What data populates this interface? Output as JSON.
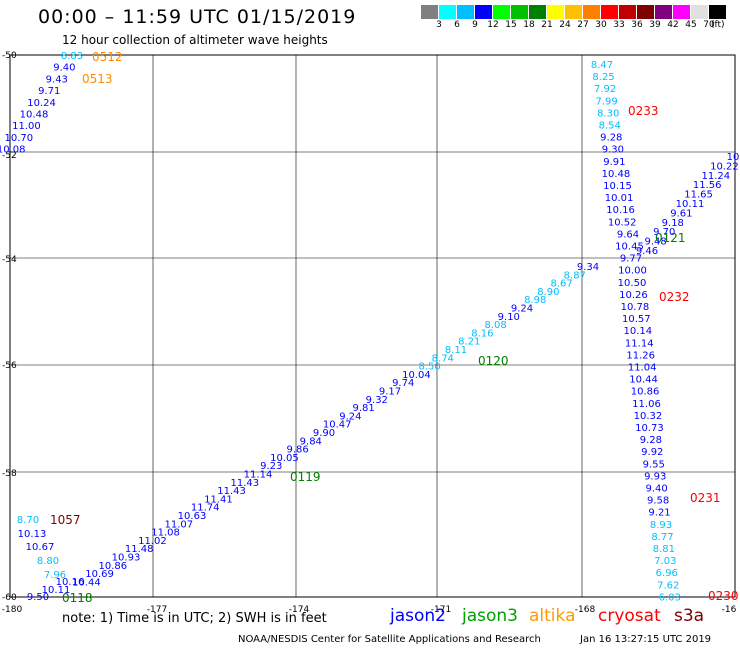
{
  "header": {
    "title": "00:00 – 11:59 UTC 01/15/2019",
    "subtitle": "12 hour collection of altimeter wave heights"
  },
  "legend": {
    "colors": [
      "#808080",
      "#00ffff",
      "#00bfff",
      "#0000ff",
      "#00ff00",
      "#00c000",
      "#008000",
      "#ffff00",
      "#ffc000",
      "#ff8000",
      "#ff0000",
      "#c00000",
      "#800000",
      "#800080",
      "#ff00ff",
      "#e0e0e0",
      "#000000"
    ],
    "labels": [
      "3",
      "6",
      "9",
      "12",
      "15",
      "18",
      "21",
      "24",
      "27",
      "30",
      "33",
      "36",
      "39",
      "42",
      "45",
      "70"
    ],
    "unit": "(ft)"
  },
  "axes": {
    "lon_ticks": [
      "-180",
      "-177",
      "-174",
      "-171",
      "-168",
      "-16"
    ],
    "lat_ticks": [
      "-50",
      "-52",
      "-54",
      "-56",
      "-58",
      "-60"
    ]
  },
  "time_labels": [
    {
      "text": "0512",
      "color": "#ff8c00"
    },
    {
      "text": "0513",
      "color": "#ff8c00"
    },
    {
      "text": "0233",
      "color": "#ff0000"
    },
    {
      "text": "0121",
      "color": "#008000"
    },
    {
      "text": "0232",
      "color": "#ff0000"
    },
    {
      "text": "0120",
      "color": "#008000"
    },
    {
      "text": "0119",
      "color": "#008000"
    },
    {
      "text": "1057",
      "color": "#800000"
    },
    {
      "text": "0231",
      "color": "#ff0000"
    },
    {
      "text": "0118",
      "color": "#008000"
    },
    {
      "text": "0230",
      "color": "#ff0000"
    }
  ],
  "tracks": {
    "altika_top": [
      {
        "v": "8.83",
        "c": "#00bfff"
      },
      {
        "v": "9.40",
        "c": "#0000ff"
      },
      {
        "v": "9.43",
        "c": "#0000ff"
      },
      {
        "v": "9.71",
        "c": "#0000ff"
      },
      {
        "v": "10.24",
        "c": "#0000ff"
      },
      {
        "v": "10.48",
        "c": "#0000ff"
      },
      {
        "v": "11.00",
        "c": "#0000ff"
      },
      {
        "v": "10.70",
        "c": "#0000ff"
      },
      {
        "v": "10.08",
        "c": "#0000ff"
      }
    ],
    "cryosat_column": [
      {
        "v": "8.47",
        "c": "#00bfff"
      },
      {
        "v": "8.25",
        "c": "#00bfff"
      },
      {
        "v": "7.92",
        "c": "#00bfff"
      },
      {
        "v": "7.99",
        "c": "#00bfff"
      },
      {
        "v": "8.30",
        "c": "#00bfff"
      },
      {
        "v": "8.54",
        "c": "#00bfff"
      },
      {
        "v": "9.28",
        "c": "#0000ff"
      },
      {
        "v": "9.30",
        "c": "#0000ff"
      },
      {
        "v": "9.91",
        "c": "#0000ff"
      },
      {
        "v": "10.48",
        "c": "#0000ff"
      },
      {
        "v": "10.15",
        "c": "#0000ff"
      },
      {
        "v": "10.01",
        "c": "#0000ff"
      },
      {
        "v": "10.16",
        "c": "#0000ff"
      },
      {
        "v": "10.52",
        "c": "#0000ff"
      },
      {
        "v": "9.64",
        "c": "#0000ff"
      },
      {
        "v": "10.45",
        "c": "#0000ff"
      },
      {
        "v": "9.77",
        "c": "#0000ff"
      },
      {
        "v": "10.00",
        "c": "#0000ff"
      },
      {
        "v": "10.50",
        "c": "#0000ff"
      },
      {
        "v": "10.26",
        "c": "#0000ff"
      },
      {
        "v": "10.78",
        "c": "#0000ff"
      },
      {
        "v": "10.57",
        "c": "#0000ff"
      },
      {
        "v": "10.14",
        "c": "#0000ff"
      },
      {
        "v": "11.14",
        "c": "#0000ff"
      },
      {
        "v": "11.26",
        "c": "#0000ff"
      },
      {
        "v": "11.04",
        "c": "#0000ff"
      },
      {
        "v": "10.44",
        "c": "#0000ff"
      },
      {
        "v": "10.86",
        "c": "#0000ff"
      },
      {
        "v": "11.06",
        "c": "#0000ff"
      },
      {
        "v": "10.32",
        "c": "#0000ff"
      },
      {
        "v": "10.73",
        "c": "#0000ff"
      },
      {
        "v": "9.28",
        "c": "#0000ff"
      },
      {
        "v": "9.92",
        "c": "#0000ff"
      },
      {
        "v": "9.55",
        "c": "#0000ff"
      },
      {
        "v": "9.93",
        "c": "#0000ff"
      },
      {
        "v": "9.40",
        "c": "#0000ff"
      },
      {
        "v": "9.58",
        "c": "#0000ff"
      },
      {
        "v": "9.21",
        "c": "#0000ff"
      },
      {
        "v": "8.93",
        "c": "#00bfff"
      },
      {
        "v": "8.77",
        "c": "#00bfff"
      },
      {
        "v": "8.81",
        "c": "#00bfff"
      },
      {
        "v": "7.03",
        "c": "#00bfff"
      },
      {
        "v": "6.96",
        "c": "#00bfff"
      },
      {
        "v": "7.62",
        "c": "#00bfff"
      },
      {
        "v": "6.03",
        "c": "#00bfff"
      }
    ],
    "upper_right_diag": [
      {
        "v": "10",
        "c": "#0000ff"
      },
      {
        "v": "10.22",
        "c": "#0000ff"
      },
      {
        "v": "11.24",
        "c": "#0000ff"
      },
      {
        "v": "11.56",
        "c": "#0000ff"
      },
      {
        "v": "11.65",
        "c": "#0000ff"
      },
      {
        "v": "10.11",
        "c": "#0000ff"
      },
      {
        "v": "9.61",
        "c": "#0000ff"
      },
      {
        "v": "9.18",
        "c": "#0000ff"
      },
      {
        "v": "9.70",
        "c": "#0000ff"
      },
      {
        "v": "9.48",
        "c": "#0000ff"
      },
      {
        "v": "9.46",
        "c": "#0000ff"
      }
    ],
    "jason_diag": [
      {
        "v": "9.34",
        "c": "#0000ff"
      },
      {
        "v": "8.87",
        "c": "#00bfff"
      },
      {
        "v": "8.67",
        "c": "#00bfff"
      },
      {
        "v": "8.90",
        "c": "#00bfff"
      },
      {
        "v": "8.98",
        "c": "#00bfff"
      },
      {
        "v": "9.24",
        "c": "#0000ff"
      },
      {
        "v": "9.10",
        "c": "#0000ff"
      },
      {
        "v": "8.08",
        "c": "#00bfff"
      },
      {
        "v": "8.16",
        "c": "#00bfff"
      },
      {
        "v": "8.21",
        "c": "#00bfff"
      },
      {
        "v": "8.11",
        "c": "#00bfff"
      },
      {
        "v": "8.74",
        "c": "#00bfff"
      },
      {
        "v": "8.50",
        "c": "#00bfff"
      },
      {
        "v": "10.04",
        "c": "#0000ff"
      },
      {
        "v": "9.74",
        "c": "#0000ff"
      },
      {
        "v": "9.17",
        "c": "#0000ff"
      },
      {
        "v": "9.32",
        "c": "#0000ff"
      },
      {
        "v": "9.81",
        "c": "#0000ff"
      },
      {
        "v": "9.24",
        "c": "#0000ff"
      },
      {
        "v": "10.47",
        "c": "#0000ff"
      },
      {
        "v": "9.90",
        "c": "#0000ff"
      },
      {
        "v": "9.84",
        "c": "#0000ff"
      },
      {
        "v": "9.86",
        "c": "#0000ff"
      },
      {
        "v": "10.05",
        "c": "#0000ff"
      },
      {
        "v": "9.23",
        "c": "#0000ff"
      },
      {
        "v": "11.14",
        "c": "#0000ff"
      },
      {
        "v": "11.43",
        "c": "#0000ff"
      },
      {
        "v": "11.43",
        "c": "#0000ff"
      },
      {
        "v": "11.41",
        "c": "#0000ff"
      },
      {
        "v": "11.74",
        "c": "#0000ff"
      },
      {
        "v": "10.63",
        "c": "#0000ff"
      },
      {
        "v": "11.07",
        "c": "#0000ff"
      },
      {
        "v": "11.08",
        "c": "#0000ff"
      },
      {
        "v": "11.02",
        "c": "#0000ff"
      },
      {
        "v": "11.48",
        "c": "#0000ff"
      },
      {
        "v": "10.93",
        "c": "#0000ff"
      },
      {
        "v": "10.86",
        "c": "#0000ff"
      },
      {
        "v": "10.69",
        "c": "#0000ff"
      },
      {
        "v": "10.44",
        "c": "#0000ff"
      }
    ],
    "lower_left": [
      {
        "v": "8.70",
        "c": "#00bfff"
      },
      {
        "v": "10.13",
        "c": "#0000ff"
      },
      {
        "v": "10.67",
        "c": "#0000ff"
      },
      {
        "v": "8.80",
        "c": "#00bfff"
      },
      {
        "v": "7.96",
        "c": "#00bfff"
      },
      {
        "v": "10.16",
        "c": "#0000ff"
      },
      {
        "v": "10.11",
        "c": "#0000ff"
      },
      {
        "v": "9.50",
        "c": "#0000ff"
      }
    ]
  },
  "note": "note:  1) Time is in UTC;  2) SWH is in feet",
  "missions": [
    {
      "name": "jason2",
      "color": "#0000ff"
    },
    {
      "name": "jason3",
      "color": "#00a000"
    },
    {
      "name": "altika",
      "color": "#ff9900"
    },
    {
      "name": "cryosat",
      "color": "#ff0000"
    },
    {
      "name": "s3a",
      "color": "#800000"
    }
  ],
  "footer": {
    "credit": "NOAA/NESDIS Center for Satellite Applications and Research",
    "timestamp": "Jan 16 13:27:15 UTC 2019"
  }
}
